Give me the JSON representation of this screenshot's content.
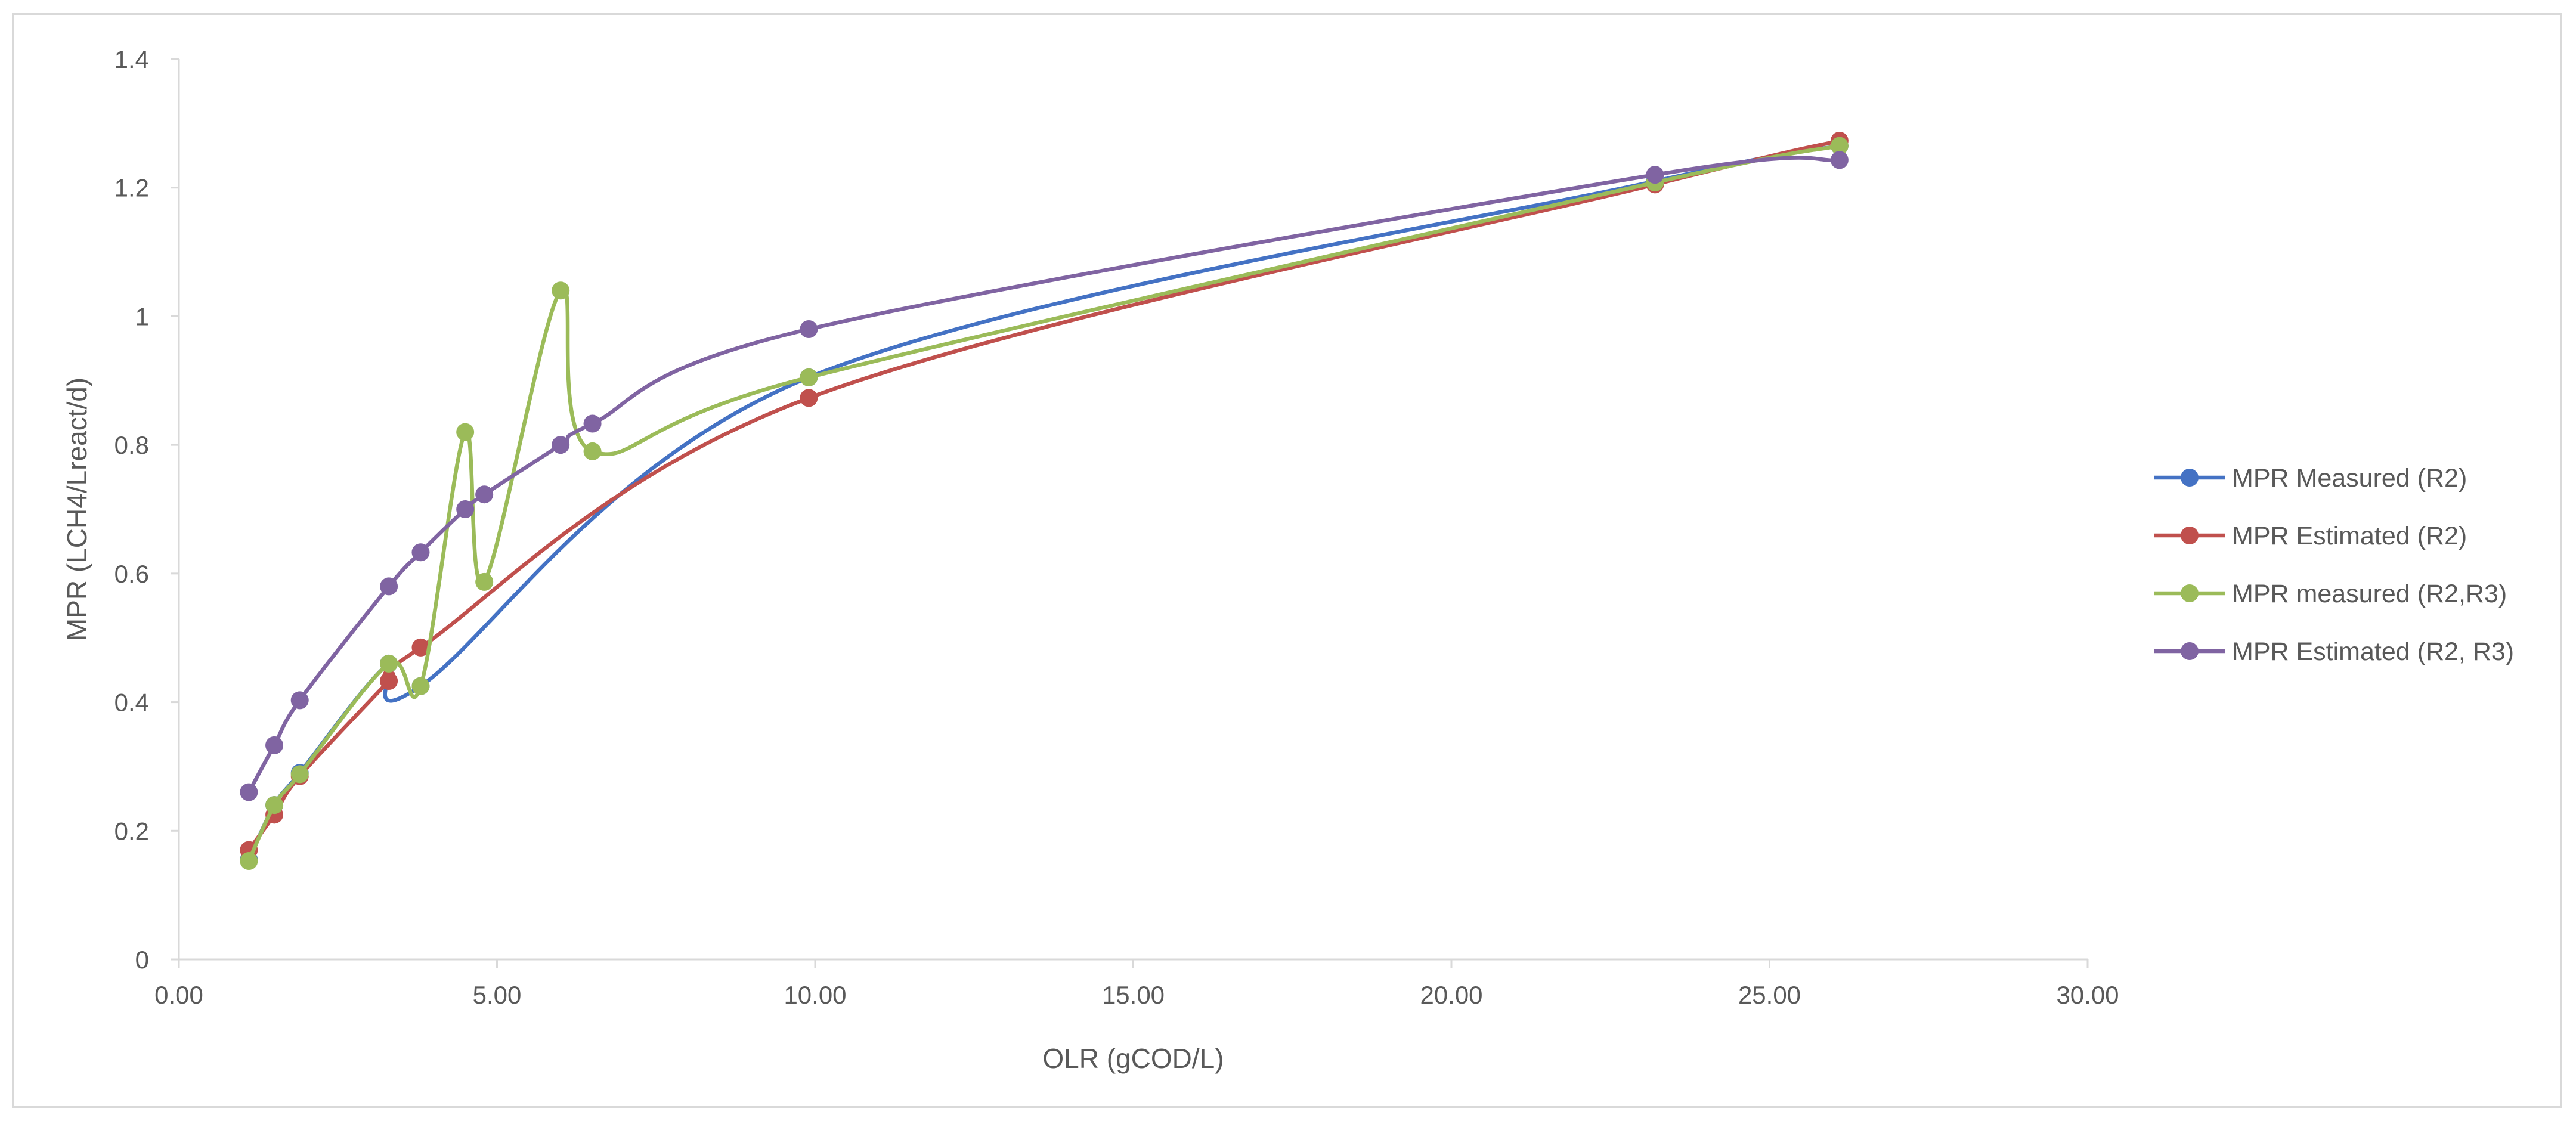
{
  "chart_data": {
    "type": "line",
    "title": "",
    "xlabel": "OLR (gCOD/L)",
    "ylabel": "MPR (LCH4/Lreact/d)",
    "xlim": [
      0,
      30
    ],
    "ylim": [
      0,
      1.4
    ],
    "x_ticks": [
      0,
      5,
      10,
      15,
      20,
      25,
      30
    ],
    "x_tick_labels": [
      "0.00",
      "5.00",
      "10.00",
      "15.00",
      "20.00",
      "25.00",
      "30.00"
    ],
    "y_ticks": [
      0,
      0.2,
      0.4,
      0.6,
      0.8,
      1,
      1.2,
      1.4
    ],
    "y_tick_labels": [
      "0",
      "0.2",
      "0.4",
      "0.6",
      "0.8",
      "1",
      "1.2",
      "1.4"
    ],
    "grid": false,
    "legend_position": "right",
    "smoothed": true,
    "series": [
      {
        "name": "MPR Measured (R2)",
        "color": "#4472c4",
        "points": [
          [
            1.1,
            0.155
          ],
          [
            1.5,
            0.24
          ],
          [
            1.9,
            0.29
          ],
          [
            3.3,
            0.46
          ],
          [
            3.8,
            0.425
          ],
          [
            9.9,
            0.905
          ],
          [
            23.2,
            1.21
          ],
          [
            26.1,
            1.265
          ]
        ]
      },
      {
        "name": "MPR Estimated (R2)",
        "color": "#c0504d",
        "points": [
          [
            1.1,
            0.17
          ],
          [
            1.5,
            0.225
          ],
          [
            1.9,
            0.285
          ],
          [
            3.3,
            0.433
          ],
          [
            3.8,
            0.485
          ],
          [
            9.9,
            0.873
          ],
          [
            23.2,
            1.205
          ],
          [
            26.1,
            1.273
          ]
        ]
      },
      {
        "name": "MPR measured (R2,R3)",
        "color": "#9bbb59",
        "points": [
          [
            1.1,
            0.153
          ],
          [
            1.5,
            0.24
          ],
          [
            1.9,
            0.288
          ],
          [
            3.3,
            0.46
          ],
          [
            3.8,
            0.425
          ],
          [
            4.5,
            0.82
          ],
          [
            4.8,
            0.587
          ],
          [
            6.0,
            1.04
          ],
          [
            6.5,
            0.79
          ],
          [
            9.9,
            0.905
          ],
          [
            23.2,
            1.208
          ],
          [
            26.1,
            1.265
          ]
        ]
      },
      {
        "name": "MPR Estimated (R2, R3)",
        "color": "#8064a2",
        "points": [
          [
            1.1,
            0.26
          ],
          [
            1.5,
            0.333
          ],
          [
            1.9,
            0.403
          ],
          [
            3.3,
            0.58
          ],
          [
            3.8,
            0.633
          ],
          [
            4.5,
            0.7
          ],
          [
            4.8,
            0.723
          ],
          [
            6.0,
            0.8
          ],
          [
            6.5,
            0.833
          ],
          [
            9.9,
            0.98
          ],
          [
            23.2,
            1.22
          ],
          [
            26.1,
            1.243
          ]
        ]
      }
    ]
  }
}
